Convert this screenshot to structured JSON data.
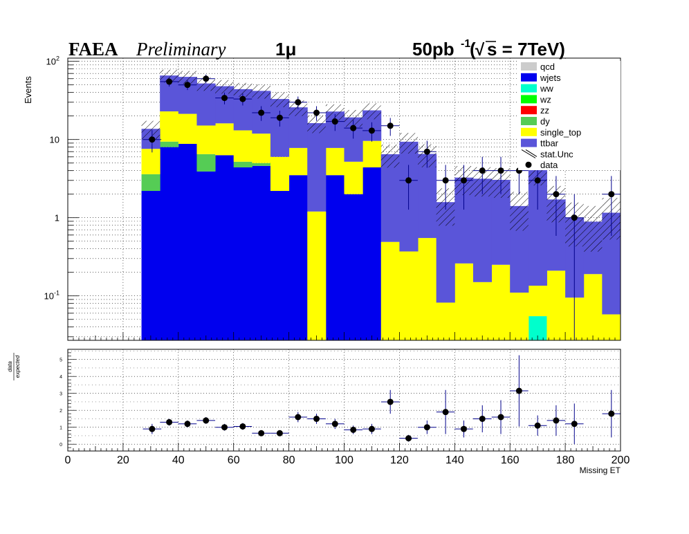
{
  "header": {
    "experiment": "FAEA",
    "status": "Preliminary",
    "channel": "1μ",
    "lumi_prefix": "50pb",
    "lumi_exp": "-1",
    "energy_open": "(",
    "sqrt_symbol": "√",
    "energy_rest": "s = 7TeV)"
  },
  "chart_data": [
    {
      "type": "stacked-histogram",
      "ylabel": "Events",
      "xlabel": "",
      "log_y": true,
      "ylim": [
        0.027,
        110
      ],
      "xlim": [
        0,
        200
      ],
      "y_tick_labels": [
        "10^-1",
        "1",
        "10",
        "10^2"
      ],
      "grid": true,
      "legend_position": "top-right",
      "bin_edges": [
        0,
        6.67,
        13.33,
        20,
        26.67,
        33.33,
        40,
        46.67,
        53.33,
        60,
        66.67,
        73.33,
        80,
        86.67,
        93.33,
        100,
        106.67,
        113.33,
        120,
        126.67,
        133.33,
        140,
        146.67,
        153.33,
        160,
        166.67,
        173.33,
        180,
        186.67,
        193.33,
        200
      ],
      "series": [
        {
          "name": "ttbar",
          "color": "#5a55d9",
          "values": [
            0,
            0,
            0,
            0,
            6.1,
            43,
            42,
            37,
            32,
            31,
            30,
            27,
            18,
            15,
            15,
            14,
            14,
            6,
            9,
            6,
            1.5,
            3,
            3,
            2.8,
            1.3,
            4,
            1.5,
            0.9,
            0.7,
            1.1
          ]
        },
        {
          "name": "single_top",
          "color": "#ffff00",
          "values": [
            0,
            0,
            0,
            0,
            4.0,
            13.5,
            12.5,
            8.6,
            9.8,
            7.9,
            6.9,
            3.8,
            4.3,
            1.2,
            4.3,
            3.2,
            5.2,
            0.49,
            0.37,
            0.55,
            0.082,
            0.26,
            0.15,
            0.25,
            0.11,
            0.08,
            0.21,
            0.095,
            0.19,
            0.058
          ]
        },
        {
          "name": "dy",
          "color": "#55cc55",
          "values": [
            0,
            0,
            0,
            0,
            1.4,
            1.4,
            0,
            2.6,
            0,
            0.8,
            0.4,
            0,
            0,
            0,
            0,
            0,
            0,
            0,
            0,
            0,
            0,
            0,
            0,
            0,
            0,
            0,
            0,
            0,
            0,
            0
          ]
        },
        {
          "name": "zz",
          "color": "#ff0000",
          "values": [
            0,
            0,
            0,
            0,
            0,
            0,
            0,
            0,
            0,
            0,
            0,
            0,
            0,
            0,
            0,
            0,
            0,
            0,
            0,
            0,
            0,
            0,
            0,
            0,
            0,
            0,
            0,
            0,
            0,
            0
          ]
        },
        {
          "name": "wz",
          "color": "#00ff00",
          "values": [
            0,
            0,
            0,
            0,
            0,
            0,
            0,
            0,
            0,
            0,
            0,
            0,
            0,
            0,
            0,
            0,
            0,
            0,
            0,
            0,
            0,
            0,
            0,
            0,
            0,
            0,
            0,
            0,
            0,
            0
          ]
        },
        {
          "name": "ww",
          "color": "#00ffcc",
          "values": [
            0,
            0,
            0,
            0,
            0,
            0,
            0,
            0,
            0,
            0,
            0,
            0,
            0,
            0,
            0,
            0,
            0,
            0,
            0,
            0,
            0,
            0,
            0,
            0,
            0,
            0.055,
            0,
            0,
            0,
            0
          ]
        },
        {
          "name": "wjets",
          "color": "#0000ee",
          "values": [
            0,
            0,
            0,
            0,
            2.2,
            8.0,
            8.8,
            3.9,
            6.3,
            4.4,
            4.6,
            2.2,
            3.5,
            0,
            3.5,
            2.0,
            4.4,
            0,
            0,
            0,
            0,
            0,
            0,
            0,
            0,
            0,
            0,
            0,
            0,
            0
          ]
        },
        {
          "name": "qcd",
          "color": "#cccccc",
          "values": [
            0,
            0,
            0,
            0,
            0,
            0,
            0,
            0,
            0,
            0,
            0,
            0,
            0,
            0,
            0,
            0,
            0,
            0,
            0,
            0,
            0,
            0,
            0,
            0,
            0,
            0,
            0,
            0,
            0,
            0
          ]
        }
      ],
      "data": {
        "name": "data",
        "x": [
          30.5,
          36.7,
          43.3,
          50,
          56.7,
          63.3,
          70,
          76.7,
          83.3,
          90,
          96.7,
          103.3,
          110,
          116.7,
          123.3,
          130,
          136.7,
          143.3,
          150,
          156.7,
          163.3,
          170,
          176.7,
          183.3,
          196.7
        ],
        "y": [
          10,
          55,
          50,
          60,
          34,
          33,
          22,
          19,
          30,
          22,
          17,
          14,
          13,
          15,
          3,
          7,
          3,
          3,
          4,
          4,
          4,
          3,
          2,
          1,
          2
        ]
      },
      "legend": [
        "qcd",
        "wjets",
        "ww",
        "wz",
        "zz",
        "dy",
        "single_top",
        "ttbar",
        "stat.Unc",
        "data"
      ]
    },
    {
      "type": "scatter",
      "ylabel": "data / expected",
      "ylabel_top": "data",
      "ylabel_bottom": "expected",
      "xlabel": "Missing ET",
      "xlim": [
        0,
        200
      ],
      "ylim": [
        -0.4,
        5.6
      ],
      "y_ticks": [
        "0",
        "1",
        "2",
        "3",
        "4",
        "5"
      ],
      "x_ticks": [
        "0",
        "20",
        "40",
        "60",
        "80",
        "100",
        "120",
        "140",
        "160",
        "180",
        "200"
      ],
      "grid": true,
      "x": [
        30.5,
        36.7,
        43.3,
        50,
        56.7,
        63.3,
        70,
        76.7,
        83.3,
        90,
        96.7,
        103.3,
        110,
        116.7,
        123.3,
        130,
        136.7,
        143.3,
        150,
        156.7,
        163.3,
        170,
        176.7,
        183.3,
        196.7
      ],
      "y": [
        0.9,
        1.3,
        1.2,
        1.4,
        1.0,
        1.05,
        0.65,
        0.65,
        1.6,
        1.5,
        1.2,
        0.85,
        0.9,
        2.5,
        0.35,
        1.0,
        1.9,
        0.9,
        1.5,
        1.6,
        3.15,
        1.1,
        1.4,
        1.2,
        1.8
      ],
      "y_err": [
        0.3,
        0.2,
        0.2,
        0.2,
        0.2,
        0.2,
        0.15,
        0.15,
        0.3,
        0.3,
        0.3,
        0.25,
        0.3,
        0.7,
        0.2,
        0.4,
        1.3,
        0.5,
        0.8,
        1.0,
        2.1,
        0.6,
        0.9,
        1.2,
        1.4
      ]
    }
  ]
}
